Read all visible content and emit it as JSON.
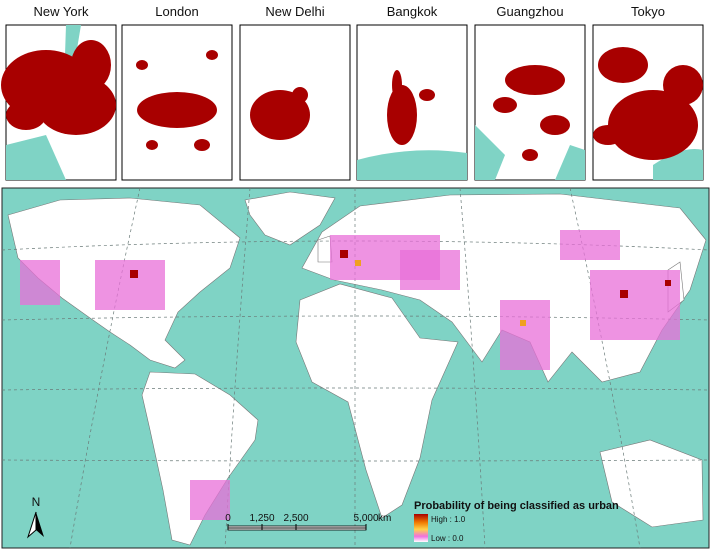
{
  "panels": [
    {
      "label": "New York"
    },
    {
      "label": "London"
    },
    {
      "label": "New Delhi"
    },
    {
      "label": "Bangkok"
    },
    {
      "label": "Guangzhou"
    },
    {
      "label": "Tokyo"
    }
  ],
  "map": {
    "legend": {
      "title": "Probability of being classified as urban",
      "high": "High : 1.0",
      "low": "Low : 0.0"
    },
    "scale_bar": {
      "ticks": [
        "0",
        "1,250",
        "2,500",
        "5,000"
      ],
      "unit": "km"
    },
    "north_arrow": "N"
  }
}
